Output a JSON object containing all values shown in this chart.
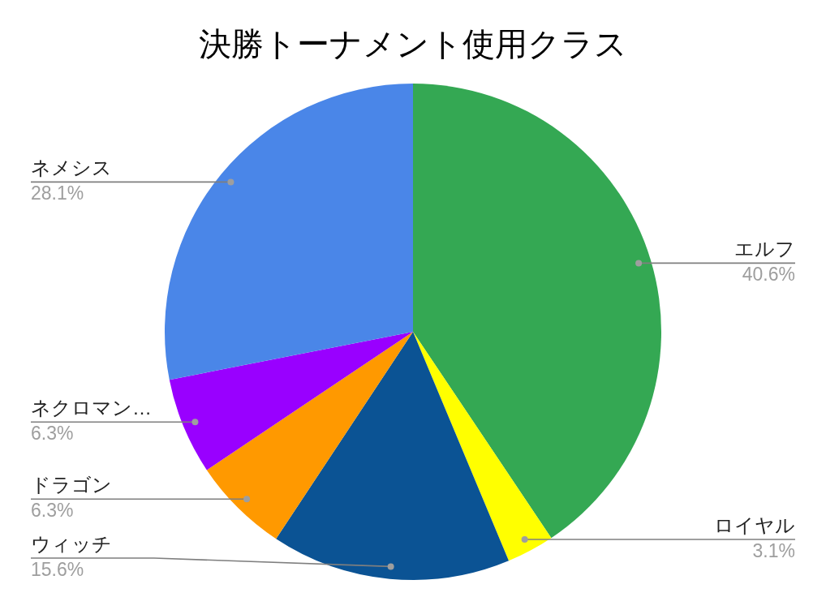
{
  "chart_data": {
    "type": "pie",
    "title": "決勝トーナメント使用クラス",
    "categories": [
      "エルフ",
      "ロイヤル",
      "ウィッチ",
      "ドラゴン",
      "ネクロマン…",
      "ネメシス"
    ],
    "values": [
      40.6,
      3.1,
      15.6,
      6.3,
      6.3,
      28.1
    ],
    "colors": [
      "#34a853",
      "#ffff00",
      "#0b5394",
      "#ff9900",
      "#9900ff",
      "#4a86e8"
    ],
    "value_labels": [
      "40.6%",
      "3.1%",
      "15.6%",
      "6.3%",
      "6.3%",
      "28.1%"
    ]
  }
}
